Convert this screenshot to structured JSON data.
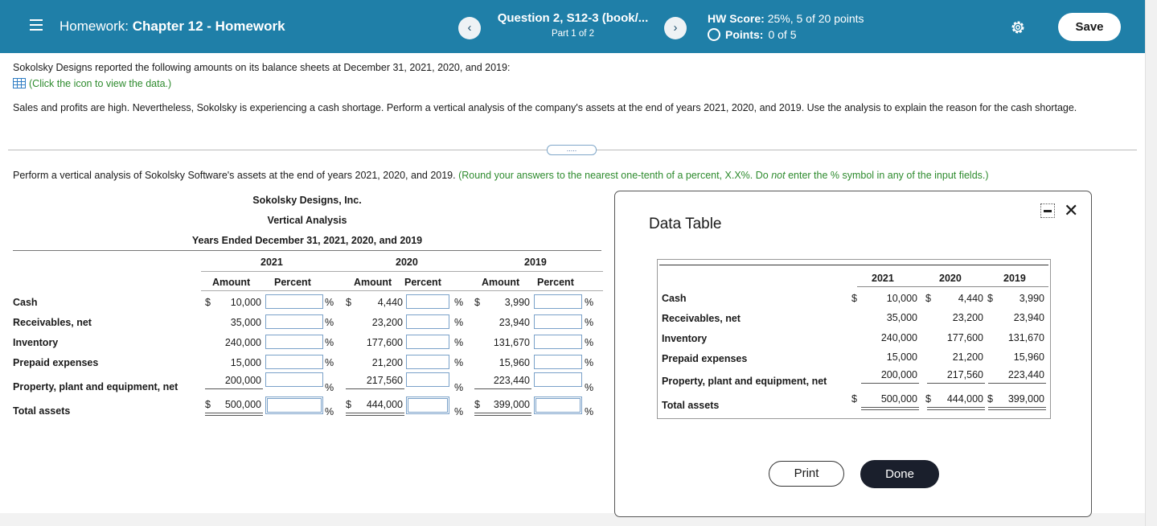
{
  "header": {
    "title_prefix": "Homework:",
    "title": "Chapter 12 - Homework",
    "question_title": "Question 2, S12-3 (book/...",
    "question_part": "Part 1 of 2",
    "score_label": "HW Score:",
    "score_value": "25%, 5 of 20 points",
    "points_label": "Points:",
    "points_value": "0 of 5",
    "save_label": "Save",
    "prev_symbol": "‹",
    "next_symbol": "›"
  },
  "intro": {
    "line1": "Sokolsky Designs reported the following amounts on its balance sheets at December 31, 2021, 2020, and 2019:",
    "data_link": "(Click the icon to view the data.)",
    "line2": "Sales and profits are high. Nevertheless, Sokolsky is experiencing a cash shortage. Perform a vertical analysis of the company's assets at the end of years 2021, 2020, and 2019. Use the analysis to explain the reason for the cash shortage.",
    "dots": "....."
  },
  "instruction": {
    "text": "Perform a vertical analysis of Sokolsky Software's assets at the end of years 2021, 2020, and 2019.",
    "hint_a": "(Round your answers to the nearest one-tenth of a percent, X.X%. Do",
    "hint_not": "not",
    "hint_b": "enter the % symbol in any of the input fields.)"
  },
  "analysis": {
    "company": "Sokolsky Designs, Inc.",
    "title": "Vertical Analysis",
    "period": "Years Ended December 31, 2021, 2020, and 2019",
    "years": [
      "2021",
      "2020",
      "2019"
    ],
    "amount_header": "Amount",
    "percent_header": "Percent",
    "dollar": "$",
    "pct_symbol": "%",
    "rows": [
      {
        "label": "Cash",
        "values": [
          "10,000",
          "4,440",
          "3,990"
        ]
      },
      {
        "label": "Receivables, net",
        "values": [
          "35,000",
          "23,200",
          "23,940"
        ]
      },
      {
        "label": "Inventory",
        "values": [
          "240,000",
          "177,600",
          "131,670"
        ]
      },
      {
        "label": "Prepaid expenses",
        "values": [
          "15,000",
          "21,200",
          "15,960"
        ]
      },
      {
        "label": "Property, plant and equipment, net",
        "values": [
          "200,000",
          "217,560",
          "223,440"
        ]
      },
      {
        "label": "Total assets",
        "values": [
          "500,000",
          "444,000",
          "399,000"
        ]
      }
    ]
  },
  "dialog": {
    "title": "Data Table",
    "years": [
      "2021",
      "2020",
      "2019"
    ],
    "dollar": "$",
    "rows": [
      {
        "label": "Cash",
        "values": [
          "10,000",
          "4,440",
          "3,990"
        ]
      },
      {
        "label": "Receivables, net",
        "values": [
          "35,000",
          "23,200",
          "23,940"
        ]
      },
      {
        "label": "Inventory",
        "values": [
          "240,000",
          "177,600",
          "131,670"
        ]
      },
      {
        "label": "Prepaid expenses",
        "values": [
          "15,000",
          "21,200",
          "15,960"
        ]
      },
      {
        "label": "Property, plant and equipment, net",
        "values": [
          "200,000",
          "217,560",
          "223,440"
        ]
      },
      {
        "label": "Total assets",
        "values": [
          "500,000",
          "444,000",
          "399,000"
        ]
      }
    ],
    "print_label": "Print",
    "done_label": "Done",
    "close_symbol": "✕"
  }
}
